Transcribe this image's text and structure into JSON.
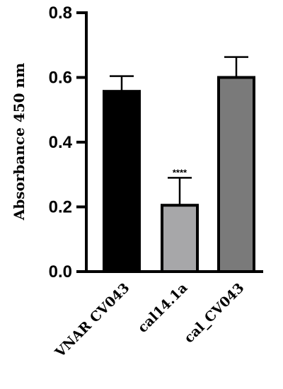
{
  "chart_data": {
    "type": "bar",
    "title": "",
    "xlabel": "",
    "ylabel": "Absorbance 450 nm",
    "ylim": [
      0,
      0.8
    ],
    "yticks": [
      "0.0",
      "0.2",
      "0.4",
      "0.6",
      "0.8"
    ],
    "categories": [
      "VNAR CV043",
      "cal14.1a",
      "cal_CV043"
    ],
    "values": [
      0.557,
      0.205,
      0.6
    ],
    "errors": [
      0.047,
      0.085,
      0.063
    ],
    "colors": [
      "#000000",
      "#a7a7a9",
      "#7a7a7a"
    ],
    "annotations": [
      {
        "category": "cal14.1a",
        "text": "****"
      }
    ],
    "grid": false,
    "legend": "none"
  }
}
